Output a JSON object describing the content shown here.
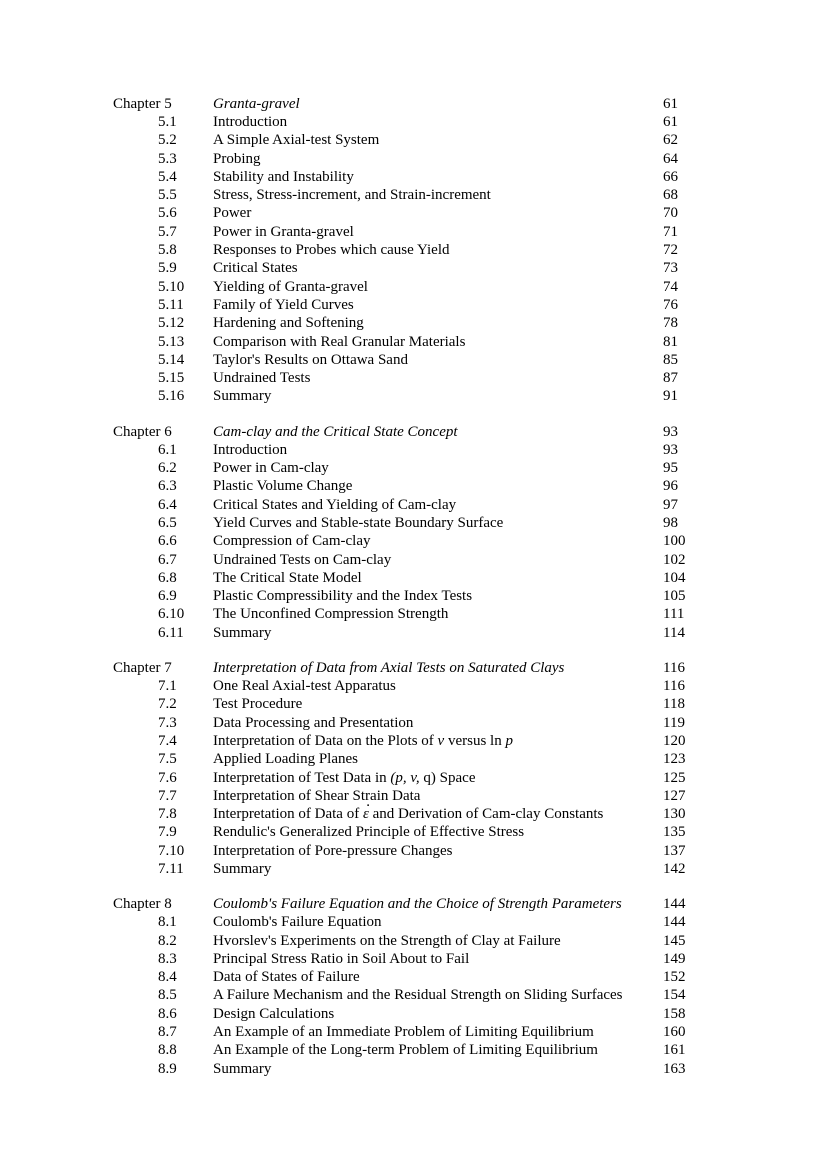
{
  "chapters": [
    {
      "label": "Chapter 5",
      "title": "Granta-gravel",
      "page": "61",
      "sections": [
        {
          "num": "5.1",
          "title": "Introduction",
          "page": "61"
        },
        {
          "num": "5.2",
          "title": "A Simple Axial-test System",
          "page": "62"
        },
        {
          "num": "5.3",
          "title": "Probing",
          "page": "64"
        },
        {
          "num": "5.4",
          "title": "Stability and Instability",
          "page": "66"
        },
        {
          "num": "5.5",
          "title": "Stress, Stress-increment, and Strain-increment",
          "page": "68"
        },
        {
          "num": "5.6",
          "title": "Power",
          "page": "70"
        },
        {
          "num": "5.7",
          "title": "Power in Granta-gravel",
          "page": "71"
        },
        {
          "num": "5.8",
          "title": "Responses to Probes which cause Yield",
          "page": "72"
        },
        {
          "num": "5.9",
          "title": "Critical States",
          "page": "73"
        },
        {
          "num": "5.10",
          "title": "Yielding of Granta-gravel",
          "page": "74"
        },
        {
          "num": "5.11",
          "title": "Family of Yield Curves",
          "page": "76"
        },
        {
          "num": "5.12",
          "title": "Hardening and Softening",
          "page": "78"
        },
        {
          "num": "5.13",
          "title": "Comparison with Real Granular Materials",
          "page": "81"
        },
        {
          "num": "5.14",
          "title": "Taylor's Results on Ottawa Sand",
          "page": "85"
        },
        {
          "num": "5.15",
          "title": "Undrained Tests",
          "page": "87"
        },
        {
          "num": "5.16",
          "title": "Summary",
          "page": "91"
        }
      ]
    },
    {
      "label": "Chapter 6",
      "title": "Cam-clay and the Critical State Concept",
      "page": "93",
      "sections": [
        {
          "num": "6.1",
          "title": "Introduction",
          "page": "93"
        },
        {
          "num": "6.2",
          "title": "Power in Cam-clay",
          "page": "95"
        },
        {
          "num": "6.3",
          "title": "Plastic Volume Change",
          "page": "96"
        },
        {
          "num": "6.4",
          "title": "Critical States and Yielding of Cam-clay",
          "page": "97"
        },
        {
          "num": "6.5",
          "title": "Yield Curves and Stable-state Boundary Surface",
          "page": "98"
        },
        {
          "num": "6.6",
          "title": "Compression of Cam-clay",
          "page": "100"
        },
        {
          "num": "6.7",
          "title": "Undrained Tests on Cam-clay",
          "page": "102"
        },
        {
          "num": "6.8",
          "title": "The Critical State Model",
          "page": "104"
        },
        {
          "num": "6.9",
          "title": "Plastic Compressibility and the Index Tests",
          "page": "105"
        },
        {
          "num": "6.10",
          "title": "The Unconfined Compression Strength",
          "page": "111"
        },
        {
          "num": "6.11",
          "title": "Summary",
          "page": "114"
        }
      ]
    },
    {
      "label": "Chapter 7",
      "title": "Interpretation of Data from Axial Tests on Saturated Clays",
      "page": "116",
      "sections": [
        {
          "num": "7.1",
          "title": "One Real Axial-test Apparatus",
          "page": "116"
        },
        {
          "num": "7.2",
          "title": "Test Procedure",
          "page": "118"
        },
        {
          "num": "7.3",
          "title": "Data Processing and Presentation",
          "page": "119"
        },
        {
          "num": "7.4",
          "title_html": "Interpretation of Data on the Plots of <span class=\"italic-inline\">v</span> versus ln <span class=\"italic-inline\">p</span>",
          "page": "120"
        },
        {
          "num": "7.5",
          "title": "Applied Loading Planes",
          "page": "123"
        },
        {
          "num": "7.6",
          "title_html": "Interpretation of Test Data in <span class=\"italic-inline\">(p, v,</span> q) Space",
          "page": "125"
        },
        {
          "num": "7.7",
          "title": "Interpretation of Shear Strain Data",
          "page": "127"
        },
        {
          "num": "7.8",
          "title_html": "Interpretation of Data of <span class=\"epsdot\">ε</span> and Derivation of Cam-clay Constants",
          "page": "130"
        },
        {
          "num": "7.9",
          "title": "Rendulic's Generalized Principle of Effective Stress",
          "page": "135"
        },
        {
          "num": "7.10",
          "title": "Interpretation of Pore-pressure Changes",
          "page": "137"
        },
        {
          "num": "7.11",
          "title": "Summary",
          "page": "142"
        }
      ]
    },
    {
      "label": "Chapter 8",
      "title": "Coulomb's Failure Equation and the Choice of Strength Parameters",
      "page": "144",
      "sections": [
        {
          "num": "8.1",
          "title": "Coulomb's Failure Equation",
          "page": "144"
        },
        {
          "num": "8.2",
          "title": "Hvorslev's Experiments on the Strength of Clay at Failure",
          "page": "145"
        },
        {
          "num": "8.3",
          "title": "Principal Stress Ratio in Soil About to Fail",
          "page": "149"
        },
        {
          "num": "8.4",
          "title": "Data of States of Failure",
          "page": "152"
        },
        {
          "num": "8.5",
          "title": "A Failure Mechanism and the Residual Strength on Sliding Surfaces",
          "page": "154"
        },
        {
          "num": "8.6",
          "title": "Design Calculations",
          "page": "158"
        },
        {
          "num": "8.7",
          "title": "An Example of an Immediate Problem of Limiting Equilibrium",
          "page": "160"
        },
        {
          "num": "8.8",
          "title": "An Example of the Long-term Problem of Limiting Equilibrium",
          "page": "161"
        },
        {
          "num": "8.9",
          "title": "Summary",
          "page": "163"
        }
      ]
    }
  ]
}
